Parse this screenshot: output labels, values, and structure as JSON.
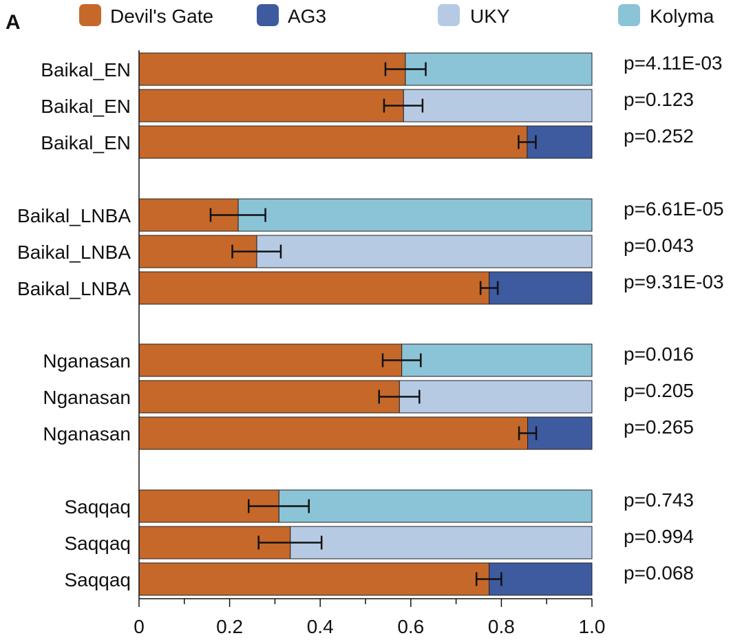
{
  "panel_label": "A",
  "colors": {
    "Devil's Gate": "#C5682A",
    "AG3": "#3E5BA0",
    "UKY": "#B6CAE4",
    "Kolyma": "#8BC3D7"
  },
  "chart_data": {
    "type": "bar",
    "orientation": "horizontal",
    "stacked": true,
    "xlim": [
      0,
      1
    ],
    "x_ticks": [
      "0",
      "0.2",
      "0.4",
      "0.6",
      "0.8",
      "1.0"
    ],
    "legend": [
      "Devil's Gate",
      "AG3",
      "UKY",
      "Kolyma"
    ],
    "legend_placement": "top",
    "groups": [
      {
        "bars": [
          {
            "label": "Baikal_EN",
            "devils_gate": 0.588,
            "other": "Kolyma",
            "err_low": 0.544,
            "err_high": 0.633,
            "p": "p=4.11E-03"
          },
          {
            "label": "Baikal_EN",
            "devils_gate": 0.584,
            "other": "UKY",
            "err_low": 0.541,
            "err_high": 0.626,
            "p": "p=0.123"
          },
          {
            "label": "Baikal_EN",
            "devils_gate": 0.857,
            "other": "AG3",
            "err_low": 0.838,
            "err_high": 0.876,
            "p": "p=0.252"
          }
        ]
      },
      {
        "bars": [
          {
            "label": "Baikal_LNBA",
            "devils_gate": 0.219,
            "other": "Kolyma",
            "err_low": 0.158,
            "err_high": 0.279,
            "p": "p=6.61E-05"
          },
          {
            "label": "Baikal_LNBA",
            "devils_gate": 0.26,
            "other": "UKY",
            "err_low": 0.206,
            "err_high": 0.313,
            "p": "p=0.043"
          },
          {
            "label": "Baikal_LNBA",
            "devils_gate": 0.773,
            "other": "AG3",
            "err_low": 0.754,
            "err_high": 0.792,
            "p": "p=9.31E-03"
          }
        ]
      },
      {
        "bars": [
          {
            "label": "Nganasan",
            "devils_gate": 0.58,
            "other": "Kolyma",
            "err_low": 0.538,
            "err_high": 0.622,
            "p": "p=0.016"
          },
          {
            "label": "Nganasan",
            "devils_gate": 0.575,
            "other": "UKY",
            "err_low": 0.53,
            "err_high": 0.619,
            "p": "p=0.205"
          },
          {
            "label": "Nganasan",
            "devils_gate": 0.858,
            "other": "AG3",
            "err_low": 0.839,
            "err_high": 0.877,
            "p": "p=0.265"
          }
        ]
      },
      {
        "bars": [
          {
            "label": "Saqqaq",
            "devils_gate": 0.309,
            "other": "Kolyma",
            "err_low": 0.242,
            "err_high": 0.375,
            "p": "p=0.743"
          },
          {
            "label": "Saqqaq",
            "devils_gate": 0.334,
            "other": "UKY",
            "err_low": 0.264,
            "err_high": 0.403,
            "p": "p=0.994"
          },
          {
            "label": "Saqqaq",
            "devils_gate": 0.773,
            "other": "AG3",
            "err_low": 0.745,
            "err_high": 0.8,
            "p": "p=0.068"
          }
        ]
      }
    ]
  }
}
